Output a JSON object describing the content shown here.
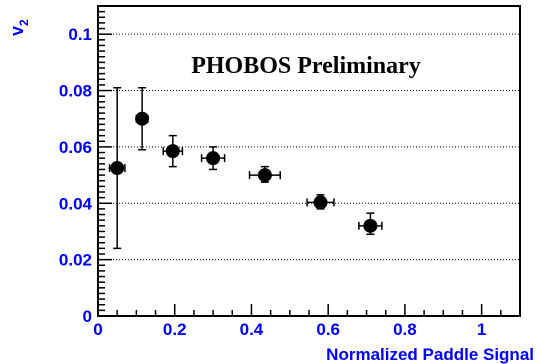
{
  "chart_data": {
    "type": "scatter",
    "title": "",
    "annotation": "PHOBOS Preliminary",
    "xlabel": "Normalized Paddle Signal",
    "ylabel": "v2",
    "ylabel_main": "v",
    "ylabel_sub": "2",
    "xlim": [
      0,
      1.1
    ],
    "ylim": [
      0,
      0.11
    ],
    "xticks": [
      0,
      0.2,
      0.4,
      0.6,
      0.8,
      1
    ],
    "xtick_labels": [
      "0",
      "0.2",
      "0.4",
      "0.6",
      "0.8",
      "1"
    ],
    "yticks": [
      0,
      0.02,
      0.04,
      0.06,
      0.08,
      0.1
    ],
    "ytick_labels": [
      "0",
      "0.02",
      "0.04",
      "0.06",
      "0.08",
      "0.1"
    ],
    "grid": "horizontal dotted",
    "series": [
      {
        "x": [
          0.05,
          0.115,
          0.195,
          0.3,
          0.435,
          0.58,
          0.71
        ],
        "y": [
          0.0525,
          0.07,
          0.0585,
          0.056,
          0.05,
          0.0403,
          0.032
        ],
        "x_err": [
          0.02,
          0.015,
          0.025,
          0.03,
          0.04,
          0.035,
          0.03
        ],
        "y_low": [
          0.024,
          0.059,
          0.053,
          0.052,
          0.0475,
          0.038,
          0.029
        ],
        "y_high": [
          0.081,
          0.081,
          0.064,
          0.06,
          0.053,
          0.043,
          0.0365
        ]
      }
    ],
    "colors": {
      "axis_text": "#0000ff",
      "markers": "#000000",
      "frame": "#000000"
    }
  }
}
